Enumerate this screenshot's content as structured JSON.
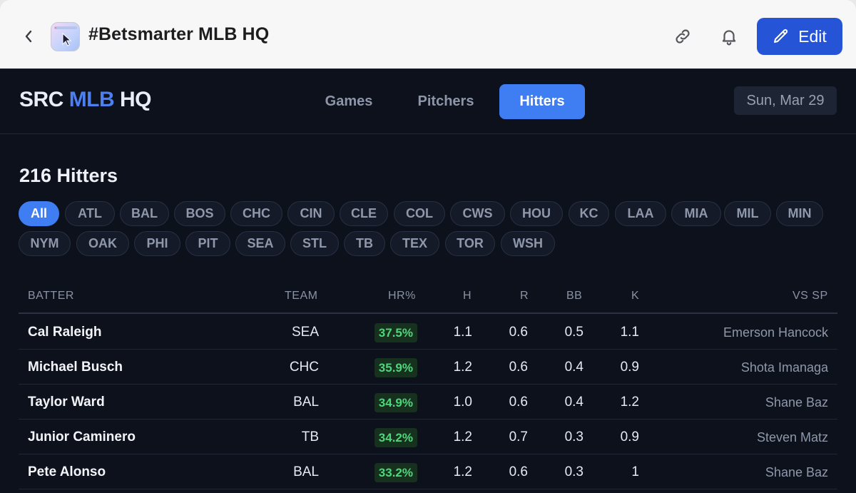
{
  "window": {
    "title": "#Betsmarter MLB HQ",
    "edit_label": "Edit"
  },
  "brand": {
    "prefix": "SRC",
    "accent": "MLB",
    "suffix": "HQ"
  },
  "nav": {
    "tabs": [
      {
        "label": "Games",
        "active": false
      },
      {
        "label": "Pitchers",
        "active": false
      },
      {
        "label": "Hitters",
        "active": true
      }
    ]
  },
  "date": "Sun, Mar 29",
  "section_title": "216 Hitters",
  "team_filters": {
    "row1": [
      "All",
      "ATL",
      "BAL",
      "BOS",
      "CHC",
      "CIN",
      "CLE",
      "COL",
      "CWS",
      "HOU",
      "KC",
      "LAA",
      "MIA",
      "MIL",
      "MIN"
    ],
    "row2": [
      "NYM",
      "OAK",
      "PHI",
      "PIT",
      "SEA",
      "STL",
      "TB",
      "TEX",
      "TOR",
      "WSH"
    ],
    "selected": "All"
  },
  "table": {
    "headers": {
      "batter": "BATTER",
      "team": "TEAM",
      "hr": "HR%",
      "h": "H",
      "r": "R",
      "bb": "BB",
      "k": "K",
      "vs_sp": "VS SP"
    },
    "rows": [
      {
        "batter": "Cal Raleigh",
        "team": "SEA",
        "hr": "37.5%",
        "h": "1.1",
        "r": "0.6",
        "bb": "0.5",
        "k": "1.1",
        "vs_sp": "Emerson Hancock"
      },
      {
        "batter": "Michael Busch",
        "team": "CHC",
        "hr": "35.9%",
        "h": "1.2",
        "r": "0.6",
        "bb": "0.4",
        "k": "0.9",
        "vs_sp": "Shota Imanaga"
      },
      {
        "batter": "Taylor Ward",
        "team": "BAL",
        "hr": "34.9%",
        "h": "1.0",
        "r": "0.6",
        "bb": "0.4",
        "k": "1.2",
        "vs_sp": "Shane Baz"
      },
      {
        "batter": "Junior Caminero",
        "team": "TB",
        "hr": "34.2%",
        "h": "1.2",
        "r": "0.7",
        "bb": "0.3",
        "k": "0.9",
        "vs_sp": "Steven Matz"
      },
      {
        "batter": "Pete Alonso",
        "team": "BAL",
        "hr": "33.2%",
        "h": "1.2",
        "r": "0.6",
        "bb": "0.3",
        "k": "1",
        "vs_sp": "Shane Baz"
      }
    ]
  },
  "colors": {
    "accent": "#3f7df2",
    "edit_button": "#2554d6",
    "background": "#0d111c",
    "hr_badge_text": "#4fd67a",
    "hr_badge_bg": "#16321f"
  }
}
